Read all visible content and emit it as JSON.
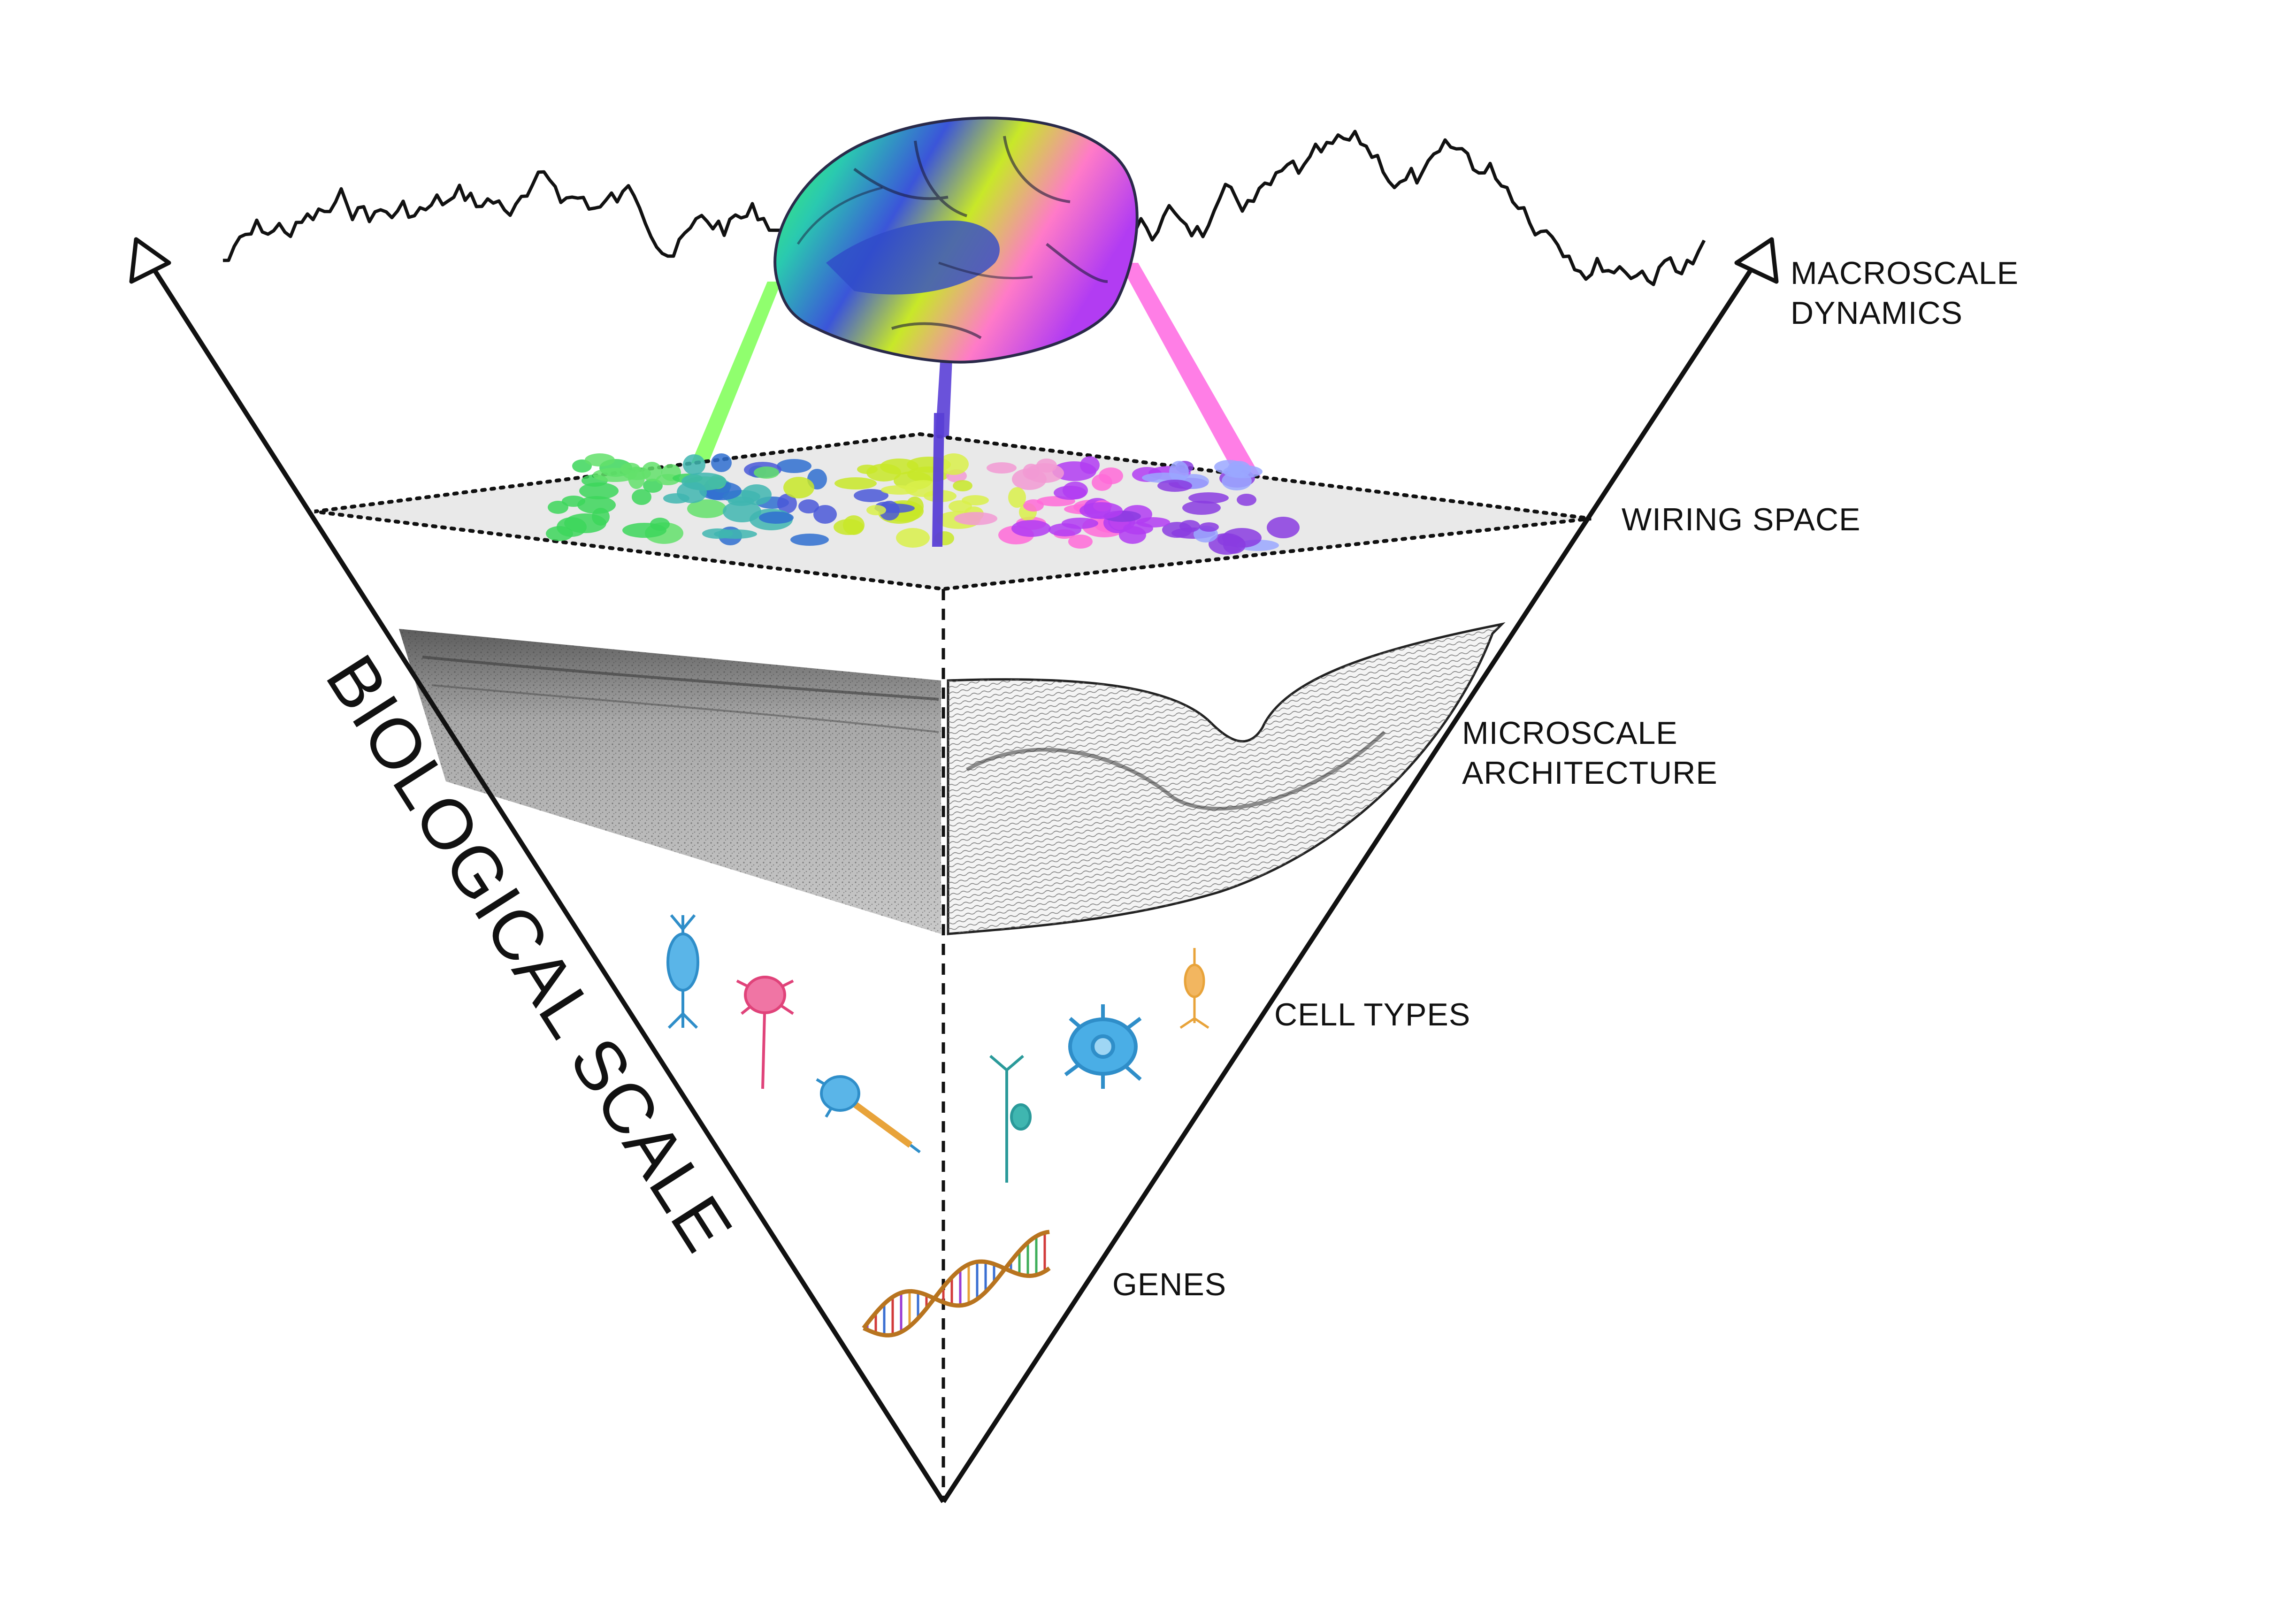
{
  "axis_label": "BIOLOGICAL SCALE",
  "levels": [
    {
      "id": "macroscale",
      "lines": [
        "MACROSCALE",
        "DYNAMICS"
      ]
    },
    {
      "id": "wiring",
      "lines": [
        "WIRING SPACE"
      ]
    },
    {
      "id": "microscale",
      "lines": [
        "MICROSCALE",
        "ARCHITECTURE"
      ]
    },
    {
      "id": "cells",
      "lines": [
        "CELL TYPES"
      ]
    },
    {
      "id": "genes",
      "lines": [
        "GENES"
      ]
    }
  ],
  "colors": {
    "line": "#111111",
    "region_green": "#7dff55",
    "region_blue": "#5a3fd6",
    "region_magenta": "#ff5ee0",
    "plane": "#e9e9e9",
    "tissue_left": "#9a9a9a",
    "tissue_right": "#f2f2f2"
  },
  "icons": [
    "macroscale-time-series",
    "brain-surface-icon",
    "wiring-space-plane",
    "cortical-tissue-image",
    "histology-sketch",
    "neuron-icons",
    "dna-helix-icon"
  ]
}
